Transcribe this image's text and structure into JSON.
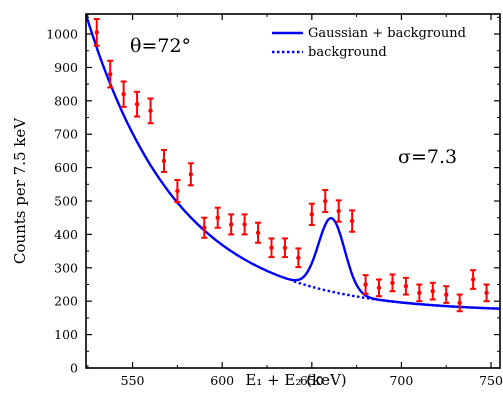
{
  "chart_data": {
    "type": "scatter",
    "xlabel": "E₁ + E₂ (keV)",
    "ylabel": "Counts per 7.5 keV",
    "xlim": [
      524,
      755
    ],
    "ylim": [
      0,
      1060
    ],
    "x_ticks": [
      550,
      600,
      650,
      700,
      750
    ],
    "y_ticks": [
      0,
      100,
      200,
      300,
      400,
      500,
      600,
      700,
      800,
      900,
      1000
    ],
    "annotations": [
      "θ=72°",
      "σ=7.3"
    ],
    "legend": {
      "placement": "top-right",
      "entries": [
        "Gaussian + background",
        "background"
      ]
    },
    "colors": {
      "data": "#ff0000",
      "fit": "#0000ff",
      "background": "#0000ff"
    },
    "series": [
      {
        "name": "data",
        "style": "error-bars",
        "x": [
          530,
          537.5,
          545,
          552.5,
          560,
          567.5,
          575,
          582.5,
          590,
          597.5,
          605,
          612.5,
          620,
          627.5,
          635,
          642.5,
          650,
          657.5,
          665,
          672.5,
          680,
          687.5,
          695,
          702.5,
          710,
          717.5,
          725,
          732.5,
          740,
          747.5
        ],
        "y": [
          1005,
          880,
          820,
          790,
          770,
          620,
          530,
          580,
          420,
          450,
          430,
          430,
          405,
          360,
          360,
          330,
          460,
          500,
          470,
          440,
          250,
          240,
          255,
          245,
          225,
          230,
          220,
          195,
          265,
          225
        ],
        "err": [
          40,
          40,
          38,
          37,
          37,
          33,
          33,
          33,
          30,
          30,
          30,
          30,
          30,
          28,
          28,
          28,
          32,
          33,
          32,
          32,
          28,
          25,
          25,
          25,
          25,
          25,
          25,
          25,
          28,
          25
        ]
      },
      {
        "name": "Gaussian + background",
        "style": "solid",
        "model": {
          "bg_a": 168,
          "bg_b": 890,
          "bg_tau": 51,
          "peak_amp": 220,
          "peak_mu": 661,
          "peak_sigma": 7.3
        }
      },
      {
        "name": "background",
        "style": "dotted",
        "x_range": [
          640,
          755
        ]
      }
    ]
  }
}
